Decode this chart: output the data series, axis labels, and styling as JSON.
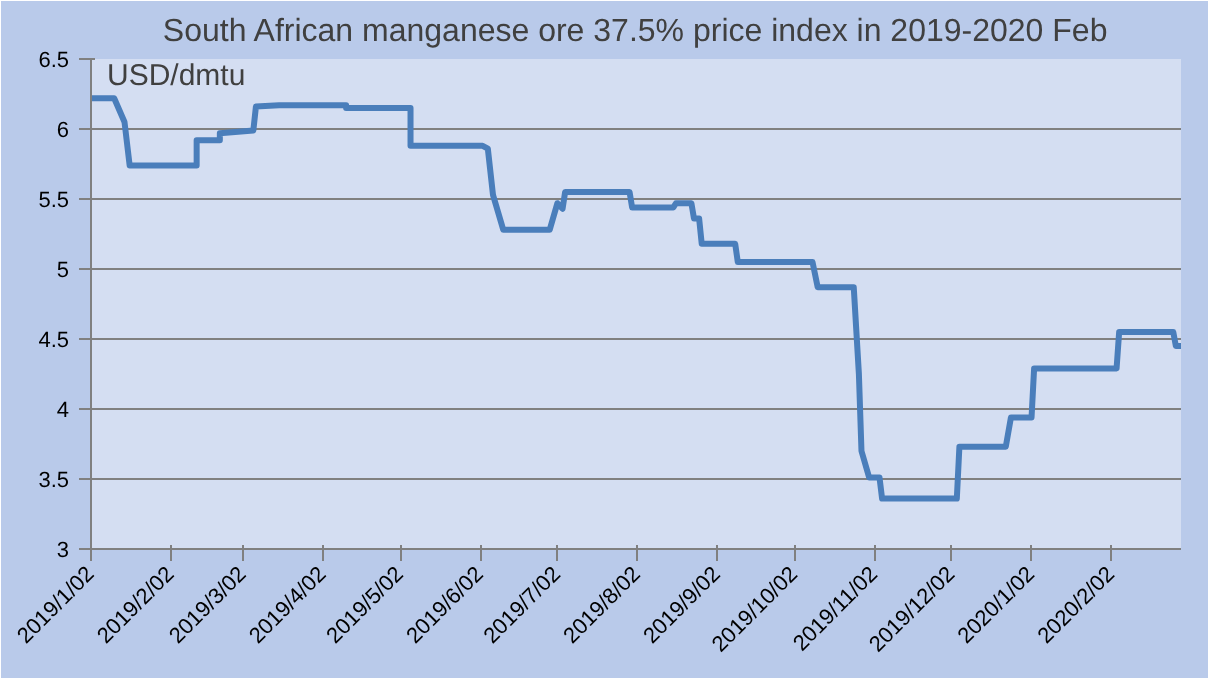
{
  "chart_data": {
    "type": "line",
    "title": "South African manganese ore 37.5% price index in 2019-2020 Feb",
    "annotations": [
      "USD/dmtu"
    ],
    "series": [
      {
        "color": "#4a7ebb",
        "x": [
          "2019-01-02",
          "2019-01-11",
          "2019-01-15",
          "2019-01-17",
          "2019-02-12",
          "2019-02-12",
          "2019-02-21",
          "2019-02-21",
          "2019-03-06",
          "2019-03-07",
          "2019-03-16",
          "2019-04-11",
          "2019-04-11",
          "2019-05-06",
          "2019-05-06",
          "2019-06-03",
          "2019-06-05",
          "2019-06-07",
          "2019-06-11",
          "2019-06-29",
          "2019-07-02",
          "2019-07-04",
          "2019-07-05",
          "2019-07-30",
          "2019-07-31",
          "2019-08-16",
          "2019-08-17",
          "2019-08-23",
          "2019-08-24",
          "2019-08-26",
          "2019-08-27",
          "2019-09-09",
          "2019-09-10",
          "2019-10-09",
          "2019-10-11",
          "2019-10-25",
          "2019-10-27",
          "2019-10-28",
          "2019-10-31",
          "2019-11-04",
          "2019-11-05",
          "2019-12-04",
          "2019-12-05",
          "2019-12-23",
          "2019-12-25",
          "2020-01-02",
          "2020-01-03",
          "2020-02-04",
          "2020-02-05",
          "2020-02-26",
          "2020-02-27",
          "2020-02-29"
        ],
        "values": [
          6.22,
          6.22,
          6.05,
          5.74,
          5.74,
          5.92,
          5.92,
          5.97,
          5.99,
          6.16,
          6.17,
          6.17,
          6.15,
          6.15,
          5.88,
          5.88,
          5.86,
          5.53,
          5.28,
          5.28,
          5.47,
          5.43,
          5.55,
          5.55,
          5.44,
          5.44,
          5.47,
          5.47,
          5.36,
          5.36,
          5.18,
          5.18,
          5.05,
          5.05,
          4.87,
          4.87,
          4.25,
          3.7,
          3.51,
          3.51,
          3.36,
          3.36,
          3.73,
          3.73,
          3.94,
          3.94,
          4.29,
          4.29,
          4.55,
          4.55,
          4.45,
          4.45
        ]
      }
    ],
    "xlim": [
      "2019-01-02",
      "2020-02-29"
    ],
    "xticks": [
      {
        "value": "2019-01-02",
        "label": "2019/1/02"
      },
      {
        "value": "2019-02-02",
        "label": "2019/2/02"
      },
      {
        "value": "2019-03-02",
        "label": "2019/3/02"
      },
      {
        "value": "2019-04-02",
        "label": "2019/4/02"
      },
      {
        "value": "2019-05-02",
        "label": "2019/5/02"
      },
      {
        "value": "2019-06-02",
        "label": "2019/6/02"
      },
      {
        "value": "2019-07-02",
        "label": "2019/7/02"
      },
      {
        "value": "2019-08-02",
        "label": "2019/8/02"
      },
      {
        "value": "2019-09-02",
        "label": "2019/9/02"
      },
      {
        "value": "2019-10-02",
        "label": "2019/10/02"
      },
      {
        "value": "2019-11-02",
        "label": "2019/11/02"
      },
      {
        "value": "2019-12-02",
        "label": "2019/12/02"
      },
      {
        "value": "2020-01-02",
        "label": "2020/1/02"
      },
      {
        "value": "2020-02-02",
        "label": "2020/2/02"
      }
    ],
    "ylim": [
      3,
      6.5
    ],
    "yticks": [
      3,
      3.5,
      4,
      4.5,
      5,
      5.5,
      6,
      6.5
    ],
    "grid": "y",
    "marker": "none",
    "line_style": "solid"
  }
}
